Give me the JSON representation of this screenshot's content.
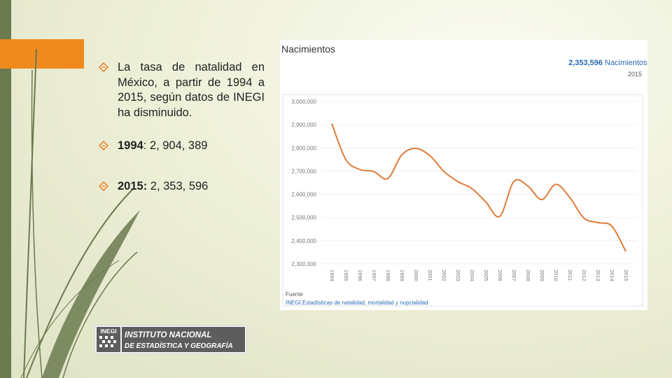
{
  "bullets": [
    {
      "text": "La tasa de natalidad en México, a partir de 1994 a 2015, según datos de INEGI ha disminuido."
    },
    {
      "bold": "1994",
      "rest": ": 2, 904, 389"
    },
    {
      "bold": "2015:",
      "rest": " 2, 353, 596"
    }
  ],
  "logo": {
    "mark": "INEGI",
    "line1": "INSTITUTO NACIONAL",
    "line2": "DE ESTADÍSTICA Y GEOGRAFÍA"
  },
  "colors": {
    "accent_orange": "#f08a1e",
    "sidebar_green": "#6b7a4f",
    "line": "#e07b39",
    "highlight_blue": "#2a6bb0"
  },
  "chart_data": {
    "type": "line",
    "title": "Nacimientos",
    "highlight_value": "2,353,596",
    "highlight_label": "Nacimientos",
    "highlight_year": "2015",
    "x": [
      "1994",
      "1995",
      "1996",
      "1997",
      "1998",
      "1999",
      "2000",
      "2001",
      "2002",
      "2003",
      "2004",
      "2005",
      "2006",
      "2007",
      "2008",
      "2009",
      "2010",
      "2011",
      "2012",
      "2013",
      "2014",
      "2015"
    ],
    "series": [
      {
        "values": [
          2904389,
          2750000,
          2707000,
          2698000,
          2668000,
          2770000,
          2798000,
          2767000,
          2699000,
          2655000,
          2625000,
          2567000,
          2505000,
          2655000,
          2636000,
          2577000,
          2643000,
          2586000,
          2498000,
          2478000,
          2463000,
          2353596
        ]
      }
    ],
    "ylim": [
      2300000,
      3000000
    ],
    "yticks": [
      3000000,
      2900000,
      2800000,
      2700000,
      2600000,
      2500000,
      2400000,
      2300000
    ],
    "ytick_labels": [
      "3,000,000",
      "2,900,000",
      "2,800,000",
      "2,700,000",
      "2,600,000",
      "2,500,000",
      "2,400,000",
      "2,300,000"
    ],
    "grid": true,
    "source_label": "Fuente",
    "source_text": "INEGI.Estadísticas de natalidad, mortalidad y nupcialidad"
  }
}
